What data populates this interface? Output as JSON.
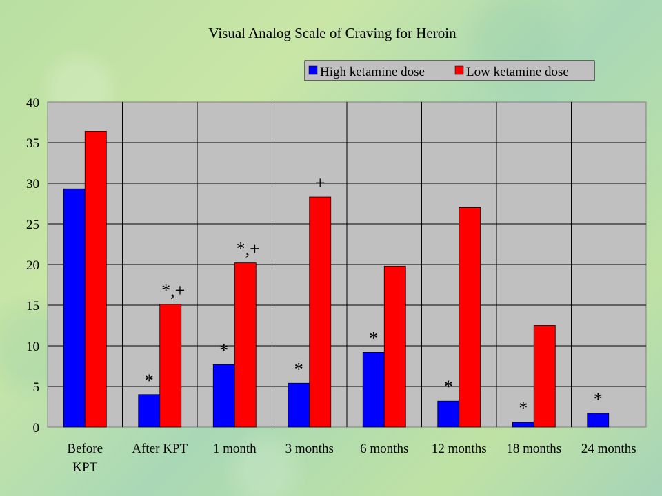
{
  "chart_data": {
    "type": "bar",
    "title": "Visual Analog Scale of Craving for Heroin",
    "xlabel": "",
    "ylabel": "",
    "ylim": [
      0,
      40
    ],
    "yticks": [
      0,
      5,
      10,
      15,
      20,
      25,
      30,
      35,
      40
    ],
    "grid": true,
    "legend_position": "top-right",
    "categories": [
      "Before KPT",
      "After KPT",
      "1 month",
      "3 months",
      "6 months",
      "12 months",
      "18 months",
      "24 months"
    ],
    "category_lines": [
      [
        "Before",
        "KPT"
      ],
      [
        "After KPT"
      ],
      [
        "1 month"
      ],
      [
        "3 months"
      ],
      [
        "6 months"
      ],
      [
        "12 months"
      ],
      [
        "18 months"
      ],
      [
        "24 months"
      ]
    ],
    "series": [
      {
        "name": "High ketamine dose",
        "color": "#0000FF",
        "values": [
          29.3,
          4.0,
          7.7,
          5.4,
          9.2,
          3.2,
          0.6,
          1.7
        ],
        "annotations": [
          "",
          "*",
          "*",
          "*",
          "*",
          "*",
          "*",
          "*"
        ]
      },
      {
        "name": "Low ketamine dose",
        "color": "#FF0000",
        "values": [
          36.4,
          15.1,
          20.2,
          28.3,
          19.8,
          27.0,
          12.5,
          null
        ],
        "annotations": [
          "",
          "*,+",
          "*,+",
          "+",
          "",
          "",
          "",
          ""
        ]
      }
    ]
  }
}
